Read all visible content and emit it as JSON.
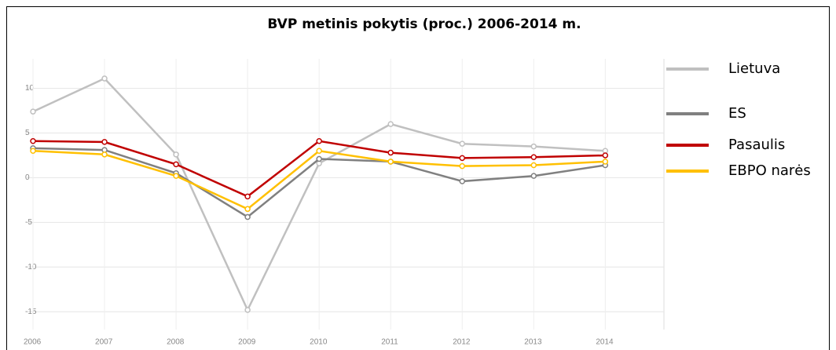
{
  "chart_data": {
    "type": "line",
    "title": "BVP metinis pokytis (proc.) 2006-2014 m.",
    "x": [
      2006,
      2007,
      2008,
      2009,
      2010,
      2011,
      2012,
      2013,
      2014
    ],
    "xlim": [
      2006,
      2014.82
    ],
    "xticks": [
      2006,
      2007,
      2008,
      2009,
      2010,
      2011,
      2012,
      2013,
      2014
    ],
    "ylim": [
      -17,
      13.3
    ],
    "yticks": [
      -15,
      -10,
      -5,
      0,
      5,
      10
    ],
    "grid": true,
    "legend": "right",
    "series": [
      {
        "name": "Lietuva",
        "color": "#c0c0c0",
        "values": [
          7.4,
          11.1,
          2.6,
          -14.8,
          1.6,
          6.0,
          3.8,
          3.5,
          3.0
        ]
      },
      {
        "name": "ES",
        "color": "#808080",
        "values": [
          3.3,
          3.1,
          0.5,
          -4.4,
          2.1,
          1.8,
          -0.4,
          0.2,
          1.4
        ]
      },
      {
        "name": "Pasaulis",
        "color": "#c00000",
        "values": [
          4.1,
          4.0,
          1.5,
          -2.1,
          4.1,
          2.8,
          2.2,
          2.3,
          2.5
        ]
      },
      {
        "name": "EBPO narės",
        "color": "#ffc000",
        "values": [
          3.0,
          2.6,
          0.2,
          -3.5,
          3.0,
          1.8,
          1.3,
          1.4,
          1.8
        ]
      }
    ]
  }
}
